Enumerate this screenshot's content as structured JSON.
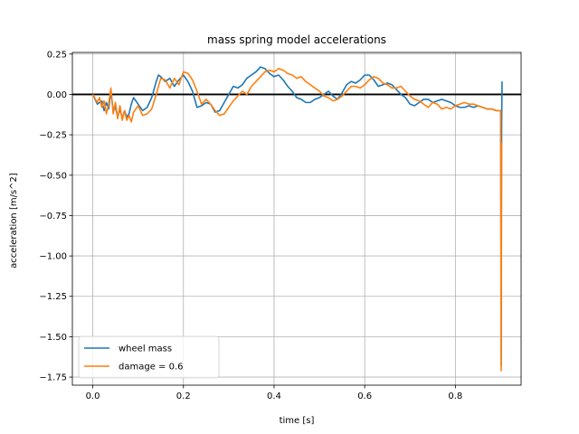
{
  "chart_data": {
    "type": "line",
    "title": "mass spring model accelerations",
    "xlabel": "time [s]",
    "ylabel": "acceleration [m/s^2]",
    "xlim": [
      -0.045,
      0.945
    ],
    "ylim": [
      -1.8,
      0.26
    ],
    "xticks": [
      0.0,
      0.2,
      0.4,
      0.6,
      0.8
    ],
    "xtick_labels": [
      "0.0",
      "0.2",
      "0.4",
      "0.6",
      "0.8"
    ],
    "yticks": [
      0.25,
      0.0,
      -0.25,
      -0.5,
      -0.75,
      -1.0,
      -1.25,
      -1.5,
      -1.75
    ],
    "ytick_labels": [
      "0.25",
      "0.00",
      "−0.25",
      "−0.50",
      "−0.75",
      "−1.00",
      "−1.25",
      "−1.50",
      "−1.75"
    ],
    "grid": true,
    "legend_position": "lower-left",
    "reference_line_y": 0.0,
    "series": [
      {
        "name": "wheel mass",
        "color": "#1f77b4",
        "x": [
          0.0,
          0.01,
          0.02,
          0.025,
          0.03,
          0.035,
          0.04,
          0.045,
          0.05,
          0.055,
          0.06,
          0.065,
          0.07,
          0.075,
          0.08,
          0.085,
          0.09,
          0.1,
          0.11,
          0.12,
          0.13,
          0.14,
          0.145,
          0.15,
          0.16,
          0.17,
          0.18,
          0.19,
          0.2,
          0.21,
          0.22,
          0.23,
          0.24,
          0.25,
          0.26,
          0.27,
          0.28,
          0.29,
          0.3,
          0.31,
          0.32,
          0.33,
          0.34,
          0.35,
          0.36,
          0.37,
          0.38,
          0.39,
          0.4,
          0.41,
          0.42,
          0.43,
          0.44,
          0.45,
          0.46,
          0.47,
          0.48,
          0.49,
          0.5,
          0.51,
          0.52,
          0.53,
          0.54,
          0.55,
          0.56,
          0.57,
          0.58,
          0.59,
          0.6,
          0.61,
          0.62,
          0.63,
          0.64,
          0.65,
          0.66,
          0.67,
          0.68,
          0.69,
          0.7,
          0.71,
          0.72,
          0.73,
          0.74,
          0.75,
          0.76,
          0.77,
          0.78,
          0.79,
          0.8,
          0.81,
          0.82,
          0.83,
          0.84,
          0.85,
          0.86,
          0.87,
          0.88,
          0.89,
          0.9,
          0.901,
          0.902,
          0.903
        ],
        "y": [
          0.0,
          -0.06,
          -0.04,
          -0.1,
          -0.05,
          -0.09,
          0.02,
          -0.1,
          -0.08,
          -0.14,
          -0.09,
          -0.15,
          -0.1,
          -0.14,
          -0.12,
          -0.06,
          -0.02,
          -0.06,
          -0.1,
          -0.08,
          -0.02,
          0.08,
          0.12,
          0.11,
          0.08,
          0.1,
          0.05,
          0.09,
          0.12,
          0.08,
          0.02,
          -0.08,
          -0.07,
          -0.05,
          -0.06,
          -0.11,
          -0.1,
          -0.05,
          0.0,
          0.05,
          0.04,
          0.06,
          0.1,
          0.12,
          0.14,
          0.17,
          0.16,
          0.13,
          0.11,
          0.12,
          0.09,
          0.05,
          0.02,
          -0.02,
          -0.03,
          -0.05,
          -0.05,
          -0.03,
          -0.02,
          0.0,
          0.02,
          -0.01,
          -0.03,
          0.01,
          0.06,
          0.08,
          0.07,
          0.09,
          0.12,
          0.12,
          0.09,
          0.05,
          0.06,
          0.07,
          0.06,
          0.03,
          0.0,
          -0.02,
          -0.06,
          -0.07,
          -0.05,
          -0.03,
          -0.03,
          -0.05,
          -0.04,
          -0.03,
          -0.04,
          -0.05,
          -0.07,
          -0.08,
          -0.08,
          -0.07,
          -0.08,
          -0.07,
          -0.08,
          -0.09,
          -0.09,
          -0.1,
          -0.1,
          -1.68,
          -0.2,
          0.08
        ]
      },
      {
        "name": "damage = 0.6",
        "color": "#ff7f0e",
        "x": [
          0.0,
          0.01,
          0.015,
          0.02,
          0.025,
          0.03,
          0.035,
          0.04,
          0.045,
          0.05,
          0.055,
          0.06,
          0.065,
          0.07,
          0.075,
          0.08,
          0.085,
          0.09,
          0.1,
          0.11,
          0.12,
          0.13,
          0.14,
          0.15,
          0.16,
          0.17,
          0.18,
          0.19,
          0.2,
          0.21,
          0.22,
          0.23,
          0.24,
          0.25,
          0.26,
          0.27,
          0.28,
          0.29,
          0.3,
          0.31,
          0.32,
          0.33,
          0.34,
          0.35,
          0.36,
          0.37,
          0.38,
          0.39,
          0.4,
          0.41,
          0.42,
          0.43,
          0.44,
          0.45,
          0.46,
          0.47,
          0.48,
          0.49,
          0.5,
          0.51,
          0.52,
          0.53,
          0.54,
          0.55,
          0.56,
          0.57,
          0.58,
          0.59,
          0.6,
          0.61,
          0.62,
          0.63,
          0.64,
          0.65,
          0.66,
          0.67,
          0.68,
          0.69,
          0.7,
          0.71,
          0.72,
          0.73,
          0.74,
          0.75,
          0.76,
          0.77,
          0.78,
          0.79,
          0.8,
          0.81,
          0.82,
          0.83,
          0.84,
          0.85,
          0.86,
          0.87,
          0.88,
          0.89,
          0.895,
          0.9,
          0.901,
          0.902
        ],
        "y": [
          0.0,
          -0.05,
          -0.02,
          -0.08,
          -0.04,
          -0.12,
          -0.06,
          0.04,
          -0.12,
          -0.05,
          -0.15,
          -0.07,
          -0.16,
          -0.1,
          -0.16,
          -0.13,
          -0.17,
          -0.11,
          -0.07,
          -0.13,
          -0.12,
          -0.09,
          0.0,
          0.1,
          0.09,
          0.04,
          0.1,
          0.06,
          0.14,
          0.13,
          0.09,
          0.02,
          -0.06,
          -0.03,
          -0.06,
          -0.1,
          -0.13,
          -0.12,
          -0.08,
          -0.04,
          -0.01,
          0.02,
          0.0,
          0.05,
          0.08,
          0.11,
          0.14,
          0.15,
          0.14,
          0.16,
          0.15,
          0.13,
          0.12,
          0.1,
          0.11,
          0.08,
          0.06,
          0.04,
          0.02,
          -0.01,
          -0.02,
          -0.04,
          -0.03,
          -0.01,
          0.02,
          0.05,
          0.05,
          0.04,
          0.06,
          0.09,
          0.11,
          0.1,
          0.07,
          0.06,
          0.04,
          0.04,
          0.05,
          0.02,
          -0.01,
          -0.03,
          -0.04,
          -0.06,
          -0.08,
          -0.05,
          -0.06,
          -0.09,
          -0.08,
          -0.09,
          -0.07,
          -0.06,
          -0.05,
          -0.06,
          -0.06,
          -0.07,
          -0.08,
          -0.09,
          -0.09,
          -0.1,
          -0.1,
          -0.1,
          -1.71,
          -0.3
        ]
      }
    ]
  }
}
